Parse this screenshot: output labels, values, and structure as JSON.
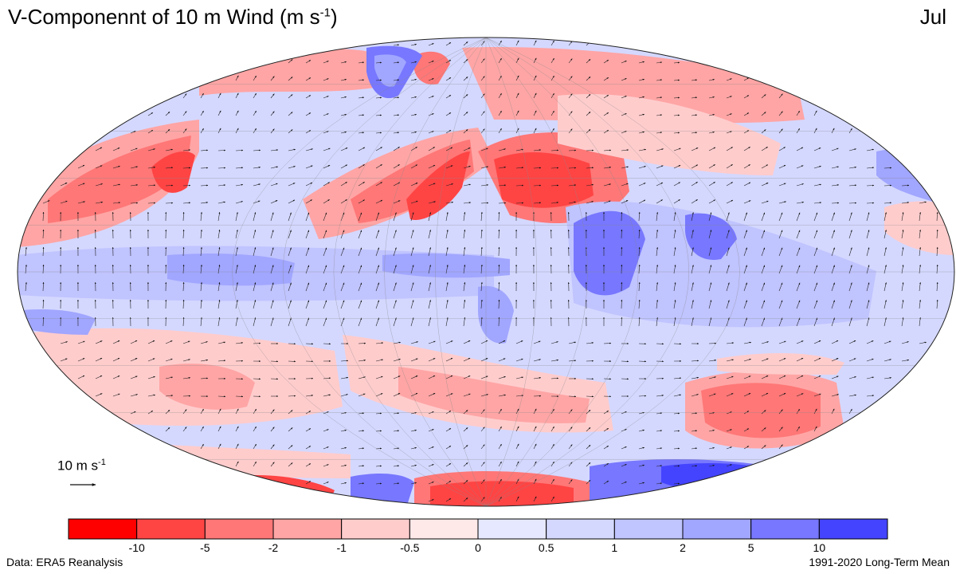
{
  "header": {
    "title_main": "V-Componennt of 10 m Wind (m s",
    "title_exp": "-1",
    "title_close": ")",
    "month": "Jul"
  },
  "reference_vector": {
    "label_main": "10 m s",
    "label_exp": "-1"
  },
  "colorbar": {
    "tick_labels": [
      "-10",
      "-5",
      "-2",
      "-1",
      "-0.5",
      "0",
      "0.5",
      "1",
      "2",
      "5",
      "10"
    ],
    "colors": [
      "#ff0000",
      "#ff4444",
      "#ff7777",
      "#ffa5a5",
      "#ffcccc",
      "#ffe8e8",
      "#e6e8ff",
      "#d4d8ff",
      "#c0c4ff",
      "#a1a6ff",
      "#7777ff",
      "#4444ff"
    ]
  },
  "footer": {
    "source": "Data: ERA5 Reanalysis",
    "period": "1991-2020 Long-Term Mean"
  }
}
